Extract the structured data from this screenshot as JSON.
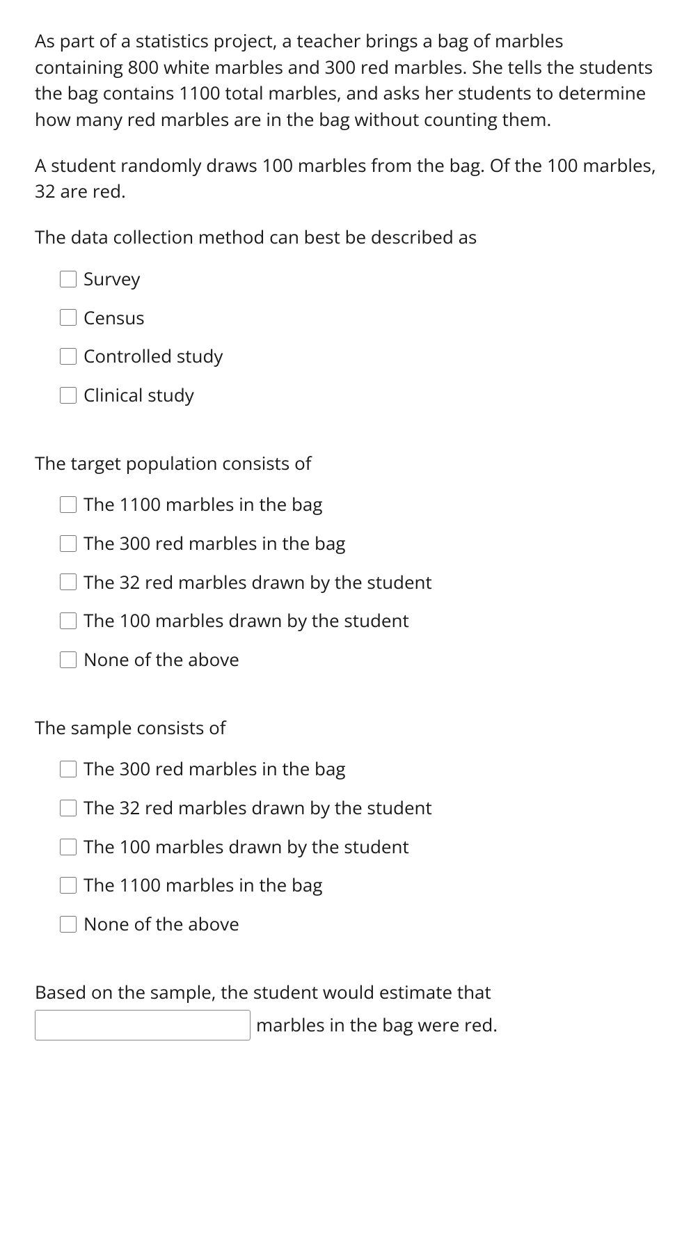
{
  "intro": {
    "p1": "As part of a statistics project, a teacher brings a bag of marbles containing 800 white marbles and 300 red marbles. She tells the students the bag contains 1100 total marbles, and asks her students to determine how many red marbles are in the bag without counting them.",
    "p2": "A student randomly draws 100 marbles from the bag. Of the 100 marbles, 32 are red."
  },
  "q1": {
    "prompt": "The data collection method can best be described as",
    "options": [
      "Survey",
      "Census",
      "Controlled study",
      "Clinical study"
    ]
  },
  "q2": {
    "prompt": "The target population consists of",
    "options": [
      "The 1100 marbles in the bag",
      "The 300 red marbles in the bag",
      "The 32 red marbles drawn by the student",
      "The 100 marbles drawn by the student",
      "None of the above"
    ]
  },
  "q3": {
    "prompt": "The sample consists of",
    "options": [
      "The 300 red marbles in the bag",
      "The 32 red marbles drawn by the student",
      "The 100 marbles drawn by the student",
      "The 1100 marbles in the bag",
      "None of the above"
    ]
  },
  "q4": {
    "prompt": "Based on the sample, the student would estimate that",
    "suffix": "marbles in the bag were red.",
    "input_value": ""
  }
}
